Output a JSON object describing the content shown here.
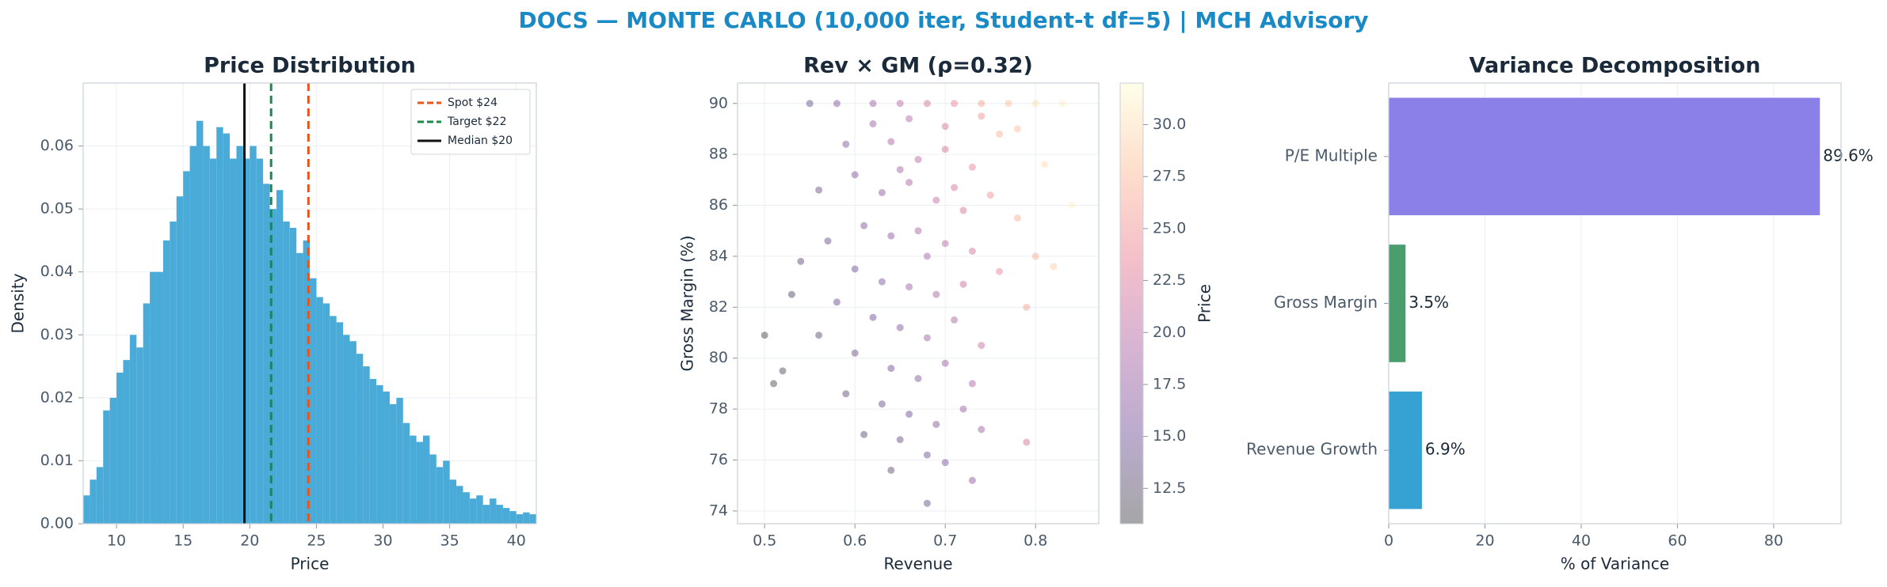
{
  "title": "DOCS — MONTE CARLO (10,000 iter, Student-t df=5) | MCH Advisory",
  "chart_data": [
    {
      "type": "histogram",
      "title": "Price Distribution",
      "xlabel": "Price",
      "ylabel": "Density",
      "color": "#4aabd8",
      "grid": true,
      "legend": "upper right",
      "bins": [
        7.5,
        8,
        8.5,
        9,
        9.5,
        10,
        10.5,
        11,
        11.5,
        12,
        12.5,
        13,
        13.5,
        14,
        14.5,
        15,
        15.5,
        16,
        16.5,
        17,
        17.5,
        18,
        18.5,
        19,
        19.5,
        20,
        20.5,
        21,
        21.5,
        22,
        22.5,
        23,
        23.5,
        24,
        24.5,
        25,
        25.5,
        26,
        26.5,
        27,
        27.5,
        28,
        28.5,
        29,
        29.5,
        30,
        30.5,
        31,
        31.5,
        32,
        32.5,
        33,
        33.5,
        34,
        34.5,
        35,
        35.5,
        36,
        36.5,
        37,
        37.5,
        38,
        38.5,
        39,
        39.5,
        40,
        40.5,
        41,
        41.5
      ],
      "values": [
        0.0045,
        0.007,
        0.009,
        0.018,
        0.02,
        0.024,
        0.026,
        0.03,
        0.028,
        0.035,
        0.04,
        0.04,
        0.045,
        0.048,
        0.052,
        0.056,
        0.06,
        0.064,
        0.06,
        0.058,
        0.063,
        0.062,
        0.058,
        0.06,
        0.058,
        0.06,
        0.058,
        0.054,
        0.05,
        0.053,
        0.048,
        0.047,
        0.043,
        0.045,
        0.039,
        0.036,
        0.035,
        0.033,
        0.032,
        0.03,
        0.029,
        0.027,
        0.025,
        0.023,
        0.022,
        0.021,
        0.019,
        0.02,
        0.016,
        0.014,
        0.013,
        0.014,
        0.011,
        0.009,
        0.01,
        0.007,
        0.006,
        0.005,
        0.004,
        0.0045,
        0.003,
        0.004,
        0.003,
        0.0025,
        0.002,
        0.0015,
        0.0018,
        0.0015
      ],
      "lines": [
        {
          "name": "Spot $24",
          "x": 24.4,
          "color": "#e8541a",
          "dashed": true
        },
        {
          "name": "Target $22",
          "x": 21.6,
          "color": "#1a8a4a",
          "dashed": true
        },
        {
          "name": "Median $20",
          "x": 19.6,
          "color": "#111111",
          "dashed": false
        }
      ],
      "xlim": [
        7.5,
        41.5
      ],
      "xticks": [
        10,
        15,
        20,
        25,
        30,
        35,
        40
      ],
      "ylim": [
        0,
        0.07
      ],
      "yticks": [
        {
          "value": 0,
          "label": "0.00"
        },
        0.01,
        0.02,
        0.03,
        0.04,
        0.05,
        0.06
      ]
    },
    {
      "type": "scatter",
      "title": "Rev × GM (ρ=0.32)",
      "xlabel": "Revenue",
      "ylabel": "Gross Margin (%)",
      "colorbar_label": "Price",
      "grid": true,
      "colormap": [
        "#000004",
        "#3b0f70",
        "#8c2981",
        "#de4968",
        "#fe9f6d",
        "#fcfdbf"
      ],
      "opacity": 0.35,
      "x": [
        0.62,
        0.65,
        0.68,
        0.71,
        0.74,
        0.77,
        0.8,
        0.58,
        0.55,
        0.83,
        0.64,
        0.67,
        0.7,
        0.73,
        0.76,
        0.6,
        0.63,
        0.66,
        0.69,
        0.72,
        0.75,
        0.78,
        0.61,
        0.64,
        0.67,
        0.7,
        0.73,
        0.57,
        0.54,
        0.6,
        0.63,
        0.66,
        0.69,
        0.72,
        0.76,
        0.8,
        0.58,
        0.62,
        0.65,
        0.68,
        0.71,
        0.74,
        0.56,
        0.6,
        0.64,
        0.67,
        0.7,
        0.73,
        0.52,
        0.59,
        0.63,
        0.66,
        0.69,
        0.72,
        0.61,
        0.65,
        0.68,
        0.64,
        0.7,
        0.68,
        0.51,
        0.5,
        0.53,
        0.79,
        0.82,
        0.84,
        0.81,
        0.62,
        0.66,
        0.7,
        0.74,
        0.78,
        0.68,
        0.65,
        0.71,
        0.59,
        0.56,
        0.74,
        0.79,
        0.73
      ],
      "y": [
        90,
        90,
        90,
        90,
        90,
        90,
        90,
        90,
        90,
        90,
        88.5,
        87.8,
        88.2,
        87.5,
        88.8,
        87.2,
        86.5,
        86.9,
        86.2,
        85.8,
        86.4,
        85.5,
        85.2,
        84.8,
        85.0,
        84.5,
        84.2,
        84.6,
        83.8,
        83.5,
        83.0,
        82.8,
        82.5,
        82.9,
        83.4,
        84.0,
        82.2,
        81.6,
        81.2,
        80.8,
        81.5,
        80.5,
        80.9,
        80.2,
        79.6,
        79.2,
        79.8,
        79.0,
        79.5,
        78.6,
        78.2,
        77.8,
        77.4,
        78.0,
        77.0,
        76.8,
        76.2,
        75.6,
        75.9,
        74.3,
        79.0,
        80.9,
        82.5,
        82.0,
        83.6,
        86.0,
        87.6,
        89.2,
        89.4,
        89.1,
        89.5,
        89.0,
        84.0,
        87.4,
        86.7,
        88.4,
        86.6,
        77.2,
        76.7,
        75.2
      ],
      "c": [
        18,
        20,
        22,
        24,
        26,
        28,
        30,
        16,
        14,
        31,
        19,
        20,
        22,
        24,
        27,
        16,
        17,
        19,
        21,
        22,
        25,
        27,
        16,
        17,
        19,
        20,
        22,
        14,
        13,
        15,
        16,
        18,
        19,
        21,
        24,
        27,
        14,
        15,
        16,
        18,
        19,
        21,
        13,
        14,
        15,
        16,
        18,
        19,
        12,
        13,
        14,
        15,
        16,
        18,
        13,
        14,
        15,
        13,
        16,
        14,
        11.5,
        11,
        12,
        26,
        29,
        31,
        30,
        18,
        20,
        22,
        25,
        28,
        19,
        19,
        22,
        16,
        14,
        18,
        22,
        17
      ],
      "xlim": [
        0.47,
        0.87
      ],
      "xticks": [
        0.5,
        0.6,
        0.7,
        0.8
      ],
      "ylim": [
        73.5,
        90.8
      ],
      "yticks": [
        74,
        76,
        78,
        80,
        82,
        84,
        86,
        88,
        90
      ],
      "clim": [
        10.8,
        32
      ],
      "cticks": [
        12.5,
        {
          "value": 15,
          "label": "15.0"
        },
        17.5,
        {
          "value": 20,
          "label": "20.0"
        },
        22.5,
        {
          "value": 25,
          "label": "25.0"
        },
        27.5,
        {
          "value": 30,
          "label": "30.0"
        }
      ]
    },
    {
      "type": "barh",
      "title": "Variance Decomposition",
      "xlabel": "% of Variance",
      "grid": true,
      "categories": [
        "P/E Multiple",
        "Gross Margin",
        "Revenue Growth"
      ],
      "values": [
        89.6,
        3.5,
        6.9
      ],
      "value_labels": [
        "89.6%",
        "3.5%",
        "6.9%"
      ],
      "colors": [
        "#8b7fe8",
        "#4a9e6e",
        "#36a2d4"
      ],
      "xlim": [
        0,
        94
      ],
      "xticks": [
        0,
        20,
        40,
        60,
        80
      ]
    }
  ]
}
